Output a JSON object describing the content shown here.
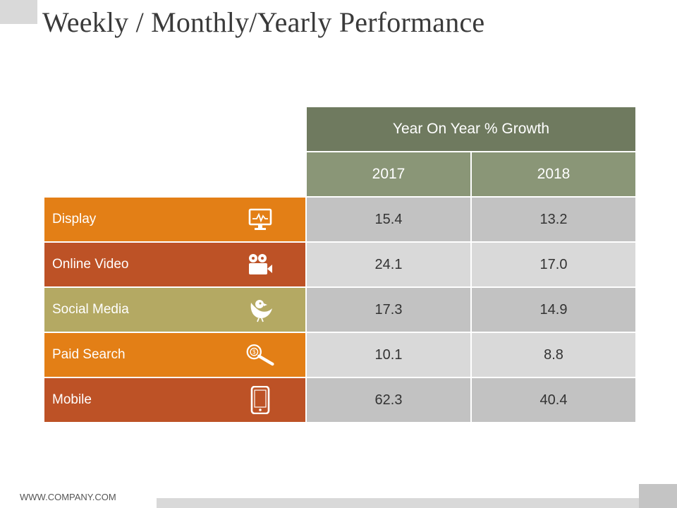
{
  "title": "Weekly / Monthly/Yearly Performance",
  "table": {
    "group_header": "Year On Year % Growth",
    "years": [
      "2017",
      "2018"
    ],
    "rows": [
      {
        "label": "Display",
        "icon": "monitor-chart-icon",
        "color": "#e37f16",
        "v2017": "15.4",
        "v2018": "13.2"
      },
      {
        "label": "Online Video",
        "icon": "video-camera-icon",
        "color": "#bd5226",
        "v2017": "24.1",
        "v2018": "17.0"
      },
      {
        "label": "Social Media",
        "icon": "bird-icon",
        "color": "#b4a963",
        "v2017": "17.3",
        "v2018": "14.9"
      },
      {
        "label": "Paid Search",
        "icon": "dollar-search-icon",
        "color": "#e37f16",
        "v2017": "10.1",
        "v2018": "8.8"
      },
      {
        "label": "Mobile",
        "icon": "mobile-phone-icon",
        "color": "#bd5226",
        "v2017": "62.3",
        "v2018": "40.4"
      }
    ]
  },
  "footer": {
    "url": "WWW.COMPANY.COM"
  },
  "colors": {
    "header_dark": "#6f7a5f",
    "header_light": "#8a9677",
    "value_dark": "#c2c2c2",
    "value_light": "#d9d9d9"
  }
}
